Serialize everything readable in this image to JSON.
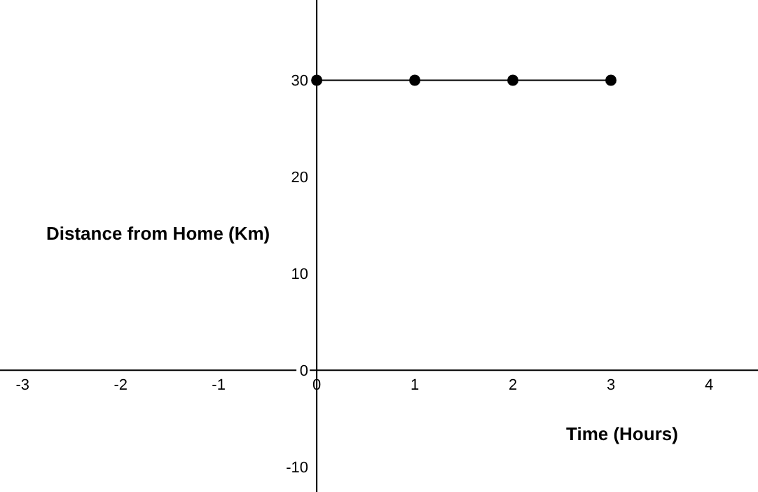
{
  "chart_data": {
    "type": "line",
    "xlabel": "Time (Hours)",
    "ylabel": "Distance from Home (Km)",
    "x": [
      0,
      1,
      2,
      3
    ],
    "series": [
      {
        "color": "#000000",
        "values": [
          30,
          30,
          30,
          30
        ]
      }
    ],
    "xlim": [
      -3.23,
      4.5
    ],
    "ylim": [
      -12.6,
      38.3
    ],
    "xticks": [
      -3,
      -2,
      -1,
      0,
      1,
      2,
      3,
      4
    ],
    "yticks": [
      -10,
      0,
      10,
      20,
      30
    ],
    "grid": false,
    "legend": false,
    "marker": "circle",
    "line_style": "solid"
  }
}
